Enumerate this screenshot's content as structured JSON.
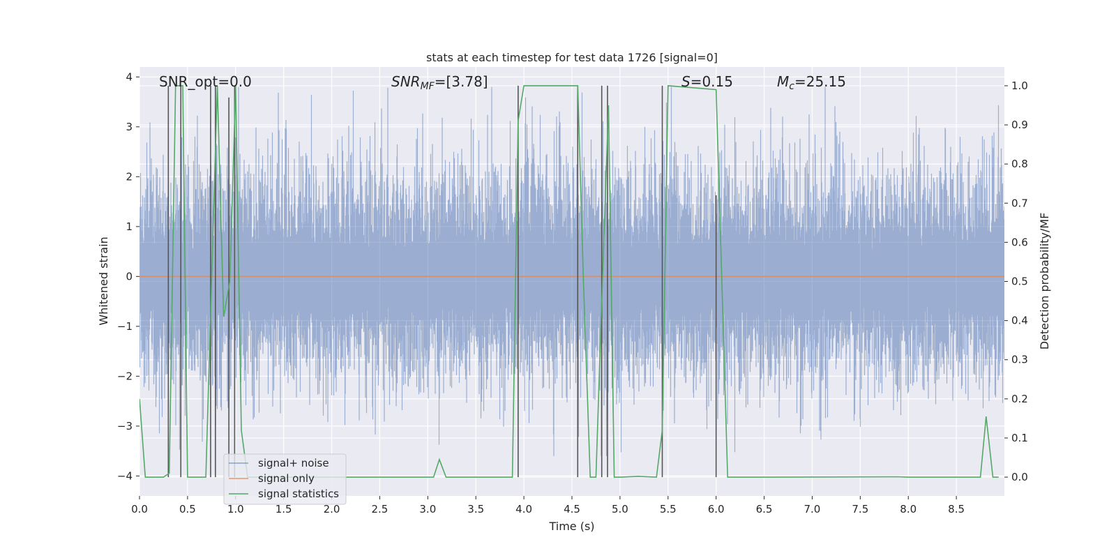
{
  "chart_data": {
    "type": "line",
    "title": "stats at each timestep for test data 1726 [signal=0]",
    "xlabel": "Time (s)",
    "ylabel": "Whitened strain",
    "y2label": "Detection probability/MF",
    "xlim": [
      0.0,
      9.0
    ],
    "ylim": [
      -4.4,
      4.2
    ],
    "y2lim": [
      -0.048,
      1.048
    ],
    "xticks": [
      0.0,
      0.5,
      1.0,
      1.5,
      2.0,
      2.5,
      3.0,
      3.5,
      4.0,
      4.5,
      5.0,
      5.5,
      6.0,
      6.5,
      7.0,
      7.5,
      8.0,
      8.5
    ],
    "xticklabels": [
      "0.0",
      "0.5",
      "1.0",
      "1.5",
      "2.0",
      "2.5",
      "3.0",
      "3.5",
      "4.0",
      "4.5",
      "5.0",
      "5.5",
      "6.0",
      "6.5",
      "7.0",
      "7.5",
      "8.0",
      "8.5"
    ],
    "yticks": [
      -4,
      -3,
      -2,
      -1,
      0,
      1,
      2,
      3,
      4
    ],
    "yticklabels": [
      "−4",
      "−3",
      "−2",
      "−1",
      "0",
      "1",
      "2",
      "3",
      "4"
    ],
    "y2ticks": [
      0.0,
      0.1,
      0.2,
      0.3,
      0.4,
      0.5,
      0.6,
      0.7,
      0.8,
      0.9,
      1.0
    ],
    "y2ticklabels": [
      "0.0",
      "0.1",
      "0.2",
      "0.3",
      "0.4",
      "0.5",
      "0.6",
      "0.7",
      "0.8",
      "0.9",
      "1.0"
    ],
    "annotations": {
      "snr_opt": "SNR_opt=0.0",
      "snr_mf_main": "SNR",
      "snr_mf_sub": "MF",
      "snr_mf_value": "=[3.78]",
      "s_symbol": "S",
      "s_value": "=0.15",
      "mc_main": "M",
      "mc_sub": "c",
      "mc_value": "=25.15"
    },
    "legend": {
      "placement": "lower-left",
      "entries": [
        "signal+ noise",
        "signal only",
        "signal statistics"
      ]
    },
    "series": [
      {
        "name": "signal+ noise",
        "axis": "left",
        "style": "noise",
        "color": "#4c72b0",
        "n_samples": 18432,
        "envelope_high": 2.8,
        "envelope_low": -2.6,
        "max_spike": 3.8,
        "min_spike": -3.6
      },
      {
        "name": "signal only",
        "axis": "left",
        "style": "line",
        "color": "#dd8452",
        "x": [
          0.0,
          9.0
        ],
        "y": [
          0.0,
          0.0
        ]
      },
      {
        "name": "signal statistics",
        "axis": "right",
        "style": "line",
        "color": "#55a868",
        "x": [
          0.0,
          0.06,
          0.25,
          0.31,
          0.375,
          0.45,
          0.5,
          0.69,
          0.75,
          0.81,
          0.875,
          0.94,
          1.0,
          1.06,
          1.125,
          1.19,
          3.06,
          3.12,
          3.19,
          3.5,
          3.88,
          3.94,
          4.0,
          4.56,
          4.62,
          4.69,
          4.75,
          4.81,
          4.88,
          4.94,
          5.0,
          5.19,
          5.38,
          5.44,
          5.5,
          6.0,
          6.06,
          6.12,
          6.5,
          7.88,
          8.0,
          8.75,
          8.81,
          8.88,
          8.94
        ],
        "y": [
          0.2,
          0.0,
          0.0,
          0.01,
          1.0,
          1.0,
          0.0,
          0.0,
          0.5,
          1.0,
          0.41,
          0.5,
          1.0,
          0.12,
          0.0,
          0.0,
          0.0,
          0.045,
          0.0,
          0.0,
          0.0,
          0.91,
          1.0,
          1.0,
          0.5,
          0.0,
          0.0,
          0.45,
          0.95,
          0.0,
          0.0,
          0.002,
          0.0,
          0.12,
          1.0,
          0.99,
          0.5,
          0.0,
          0.0,
          0.001,
          0.0,
          0.0,
          0.155,
          0.0,
          0.0
        ]
      },
      {
        "name": "markers",
        "axis": "right",
        "style": "vlines",
        "color": "#555555",
        "x": [
          0.3,
          0.43,
          0.74,
          0.79,
          0.93,
          0.99,
          3.94,
          4.56,
          4.81,
          4.87,
          5.44,
          6.0
        ],
        "top": [
          1.0,
          1.0,
          1.0,
          1.0,
          0.97,
          1.0,
          1.0,
          1.0,
          1.0,
          1.0,
          1.0,
          0.72
        ]
      }
    ]
  }
}
